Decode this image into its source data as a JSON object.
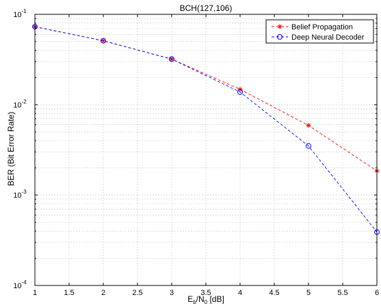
{
  "chart_data": {
    "type": "line",
    "title": "BCH(127,106)",
    "xlabel": {
      "base": "E",
      "sub1": "b",
      "mid": "/N",
      "sub2": "0",
      "tail": " [dB]"
    },
    "ylabel": "BER (Bit Error Rate)",
    "xlim": [
      1,
      6
    ],
    "ylim": [
      0.0001,
      0.1
    ],
    "yscale": "log",
    "grid": true,
    "legend_position": "top-right",
    "x_ticks": [
      "1",
      "1.5",
      "2",
      "2.5",
      "3",
      "3.5",
      "4",
      "4.5",
      "5",
      "5.5",
      "6"
    ],
    "y_ticks": [
      {
        "base": "10",
        "exp": "-4",
        "value": 0.0001
      },
      {
        "base": "10",
        "exp": "-3",
        "value": 0.001
      },
      {
        "base": "10",
        "exp": "-2",
        "value": 0.01
      },
      {
        "base": "10",
        "exp": "-1",
        "value": 0.1
      }
    ],
    "series": [
      {
        "name": "Belief Propagation",
        "color": "#ff0000",
        "marker": "star",
        "line": "dashed",
        "x": [
          1,
          2,
          3,
          4,
          5,
          6
        ],
        "y": [
          0.073,
          0.051,
          0.032,
          0.0148,
          0.0059,
          0.00185
        ]
      },
      {
        "name": "Deep Neural Decoder",
        "color": "#0000ff",
        "marker": "circle",
        "line": "dashed",
        "x": [
          1,
          2,
          3,
          4,
          5,
          6
        ],
        "y": [
          0.073,
          0.051,
          0.032,
          0.0138,
          0.0035,
          0.00039
        ]
      }
    ]
  }
}
